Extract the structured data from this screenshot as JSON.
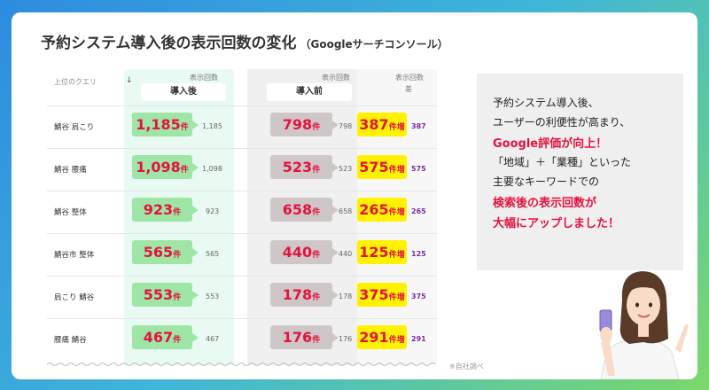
{
  "title": "予約システム導入後の表示回数の変化",
  "subtitle": "（Googleサーチコンソール）",
  "table": {
    "header_query": "上位のクエリ",
    "header_impressions": "表示回数",
    "label_after": "導入後",
    "label_before": "導入前",
    "header_diff": "表示回数",
    "header_diff_sub": "差",
    "unit": "件",
    "unit_increase": "件増",
    "rows": [
      {
        "keyword": "鯖谷 肩こり",
        "after": "1,185",
        "after_small": "1,185",
        "before": "798",
        "before_small": "798",
        "diff": "387",
        "diff_small": "387"
      },
      {
        "keyword": "鯖谷 腰痛",
        "after": "1,098",
        "after_small": "1,098",
        "before": "523",
        "before_small": "523",
        "diff": "575",
        "diff_small": "575"
      },
      {
        "keyword": "鯖谷 整体",
        "after": "923",
        "after_small": "923",
        "before": "658",
        "before_small": "658",
        "diff": "265",
        "diff_small": "265"
      },
      {
        "keyword": "鯖谷市 整体",
        "after": "565",
        "after_small": "565",
        "before": "440",
        "before_small": "440",
        "diff": "125",
        "diff_small": "125"
      },
      {
        "keyword": "肩こり 鯖谷",
        "after": "553",
        "after_small": "553",
        "before": "178",
        "before_small": "178",
        "diff": "375",
        "diff_small": "375"
      },
      {
        "keyword": "腰痛 鯖谷",
        "after": "467",
        "after_small": "467",
        "before": "176",
        "before_small": "176",
        "diff": "291",
        "diff_small": "291"
      }
    ],
    "note": "※自社調べ"
  },
  "panel": {
    "line1": "予約システム導入後、",
    "line2": "ユーザーの利便性が高まり、",
    "line3": "Google評価が向上！",
    "line4": "「地域」＋「業種」といった",
    "line5": "主要なキーワードでの",
    "line6": "検索後の表示回数が",
    "line7": "大幅にアップしました！"
  },
  "colors": {
    "accent_red": "#e3133f",
    "after_green": "#9fe6a6",
    "before_gray": "#cfc7c7",
    "diff_yellow": "#fff200",
    "diff_purple": "#7a2f9a"
  }
}
